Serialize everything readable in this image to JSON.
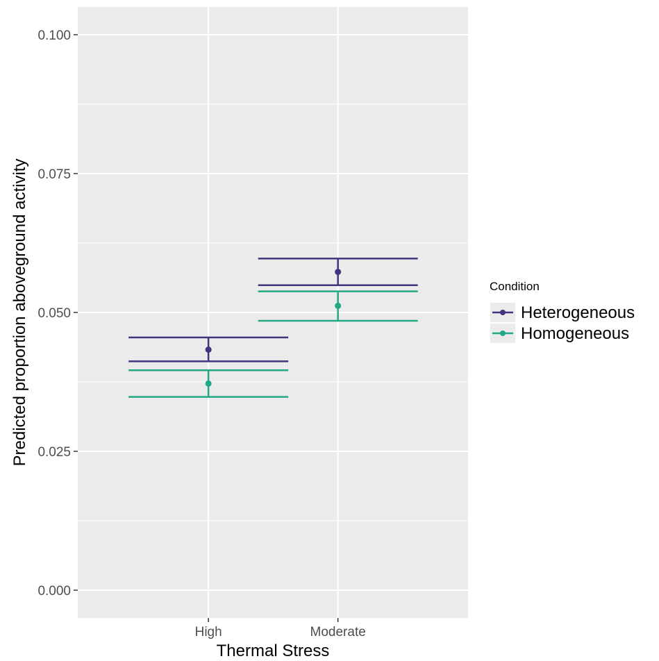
{
  "chart_data": {
    "type": "scatter",
    "xlabel": "Thermal Stress",
    "ylabel": "Predicted proportion aboveground activity",
    "categories": [
      "High",
      "Moderate"
    ],
    "ylim": [
      -0.005,
      0.105
    ],
    "yticks": [
      0.0,
      0.025,
      0.05,
      0.075,
      0.1
    ],
    "ytick_labels": [
      "0.000",
      "0.025",
      "0.050",
      "0.075",
      "0.100"
    ],
    "grid": true,
    "legend": {
      "title": "Condition",
      "placement": "right"
    },
    "series": [
      {
        "name": "Heterogeneous",
        "color": "#46337e",
        "values": [
          0.0433,
          0.0573
        ],
        "lower": [
          0.0412,
          0.0549
        ],
        "upper": [
          0.0455,
          0.0597
        ]
      },
      {
        "name": "Homogeneous",
        "color": "#22a884",
        "values": [
          0.0372,
          0.0512
        ],
        "lower": [
          0.0348,
          0.0485
        ],
        "upper": [
          0.0396,
          0.0538
        ]
      }
    ]
  }
}
